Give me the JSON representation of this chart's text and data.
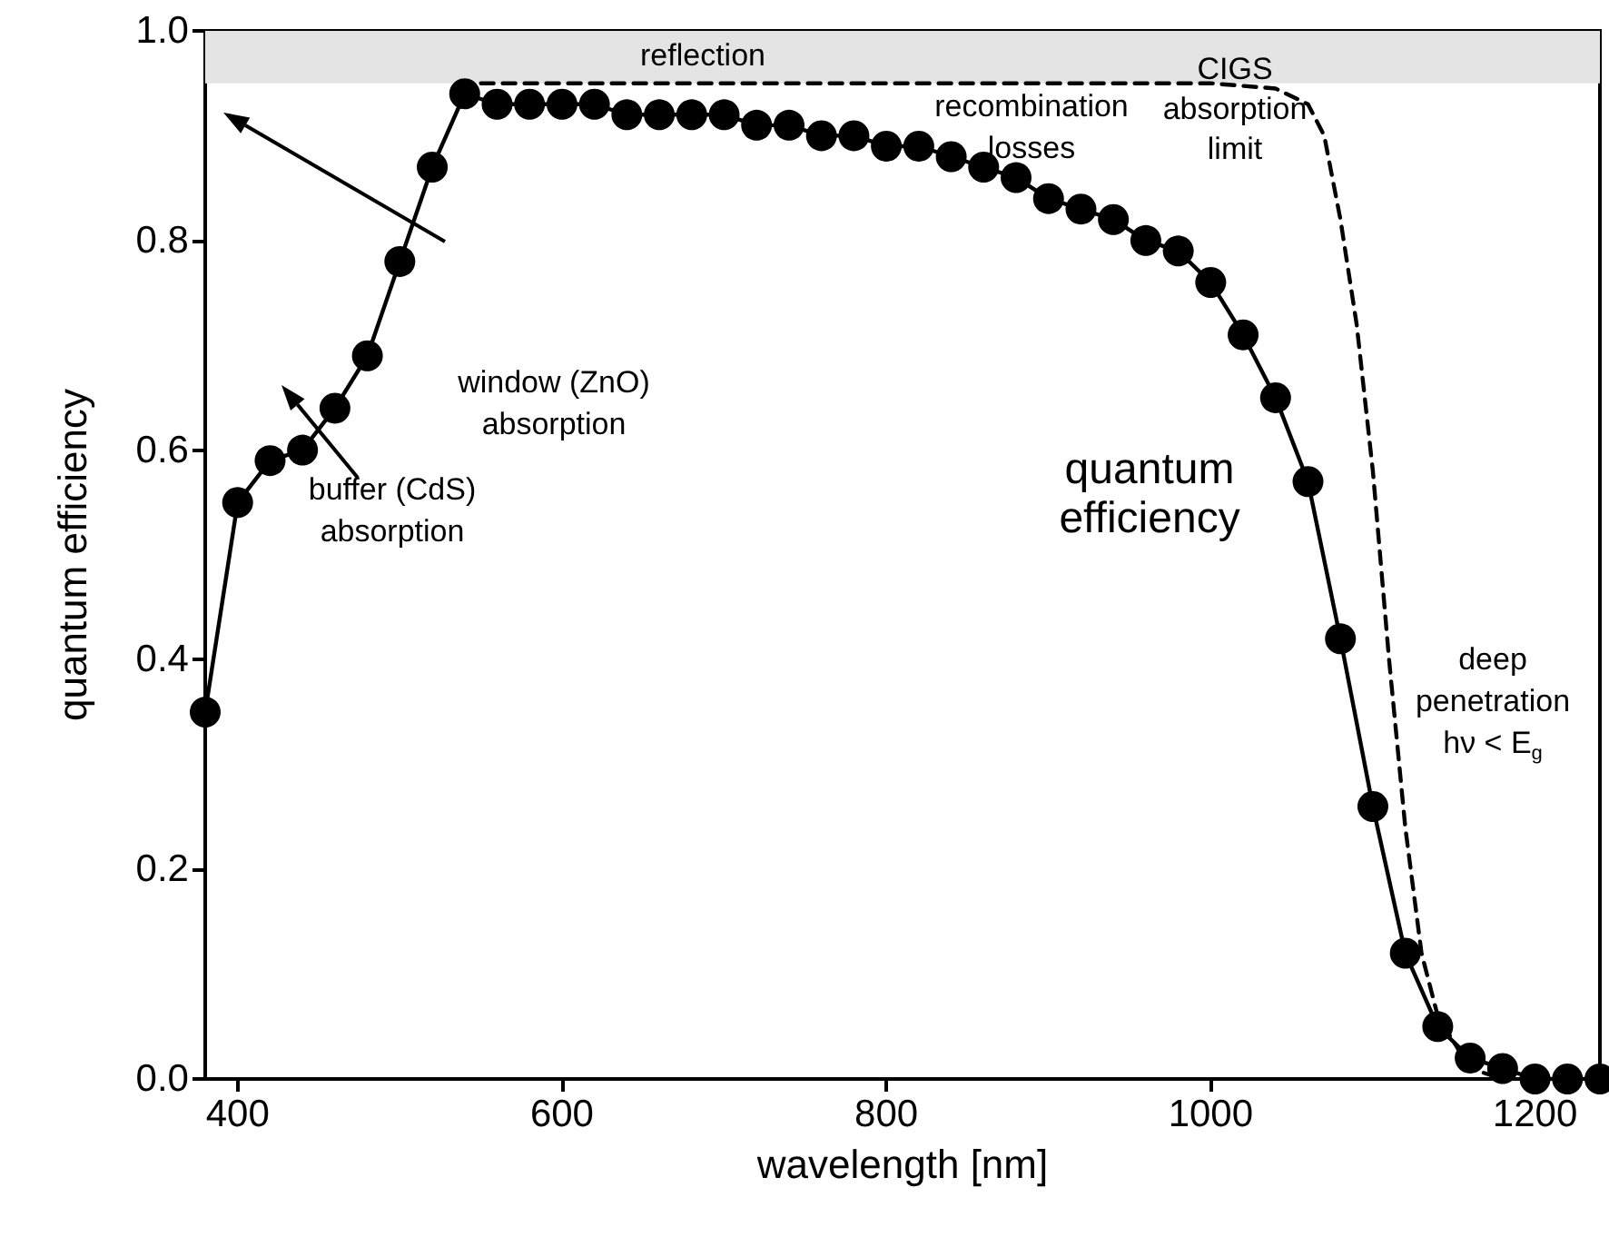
{
  "chart_data": {
    "type": "line",
    "xlabel": "wavelength [nm]",
    "ylabel": "quantum efficiency",
    "xlim": [
      380,
      1240
    ],
    "xticks": [
      400,
      600,
      800,
      1000,
      1200
    ],
    "ylim": [
      0,
      1
    ],
    "yticks": [
      {
        "value": 0,
        "label": "0.0"
      },
      {
        "value": 0.2,
        "label": "0.2"
      },
      {
        "value": 0.4,
        "label": "0.4"
      },
      {
        "value": 0.6,
        "label": "0.6"
      },
      {
        "value": 0.8,
        "label": "0.8"
      },
      {
        "value": 1,
        "label": "1.0"
      }
    ],
    "grid": false,
    "legend": false,
    "series": [
      {
        "name": "quantum efficiency",
        "color": "#000000",
        "marker": "circle",
        "line_style": "solid",
        "x": [
          380,
          400,
          420,
          440,
          460,
          480,
          500,
          520,
          540,
          560,
          580,
          600,
          620,
          640,
          660,
          680,
          700,
          720,
          740,
          760,
          780,
          800,
          820,
          840,
          860,
          880,
          900,
          920,
          940,
          960,
          980,
          1000,
          1020,
          1040,
          1060,
          1080,
          1100,
          1120,
          1140,
          1160,
          1180,
          1200,
          1220,
          1240
        ],
        "values": [
          0.35,
          0.55,
          0.59,
          0.6,
          0.64,
          0.69,
          0.78,
          0.87,
          0.94,
          0.93,
          0.93,
          0.93,
          0.93,
          0.92,
          0.92,
          0.92,
          0.92,
          0.91,
          0.91,
          0.9,
          0.9,
          0.89,
          0.89,
          0.88,
          0.87,
          0.86,
          0.84,
          0.83,
          0.82,
          0.8,
          0.79,
          0.76,
          0.71,
          0.65,
          0.57,
          0.42,
          0.26,
          0.12,
          0.05,
          0.02,
          0.01,
          0,
          0,
          0
        ]
      },
      {
        "name": "CIGS absorption limit",
        "color": "#000000",
        "marker": "none",
        "line_style": "dashed",
        "x": [
          550,
          1000,
          1040,
          1060,
          1070,
          1080,
          1090,
          1100,
          1110,
          1120,
          1130,
          1140,
          1160,
          1180
        ],
        "values": [
          0.95,
          0.95,
          0.945,
          0.93,
          0.9,
          0.82,
          0.72,
          0.58,
          0.4,
          0.24,
          0.12,
          0.06,
          0.01,
          0
        ]
      }
    ],
    "bands": [
      {
        "axis": "y",
        "from": 0.95,
        "to": 1,
        "label": "reflection",
        "color": "#e4e4e4"
      }
    ],
    "annotations": [
      "recombination losses",
      "window (ZnO) absorption",
      "buffer (CdS) absorption",
      "deep penetration hν < E$_{g}$"
    ]
  }
}
